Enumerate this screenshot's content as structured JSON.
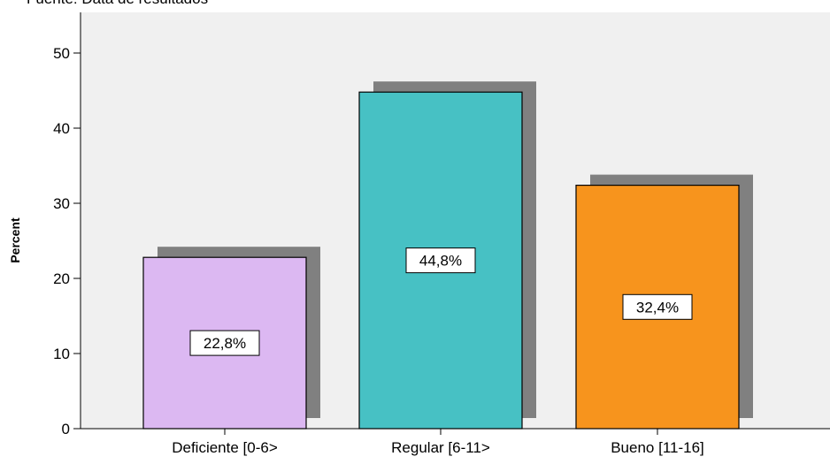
{
  "source_note": "Fuente: Data de resultados",
  "colors": {
    "plot_background": "#f0f0f0",
    "shadow": "#808080",
    "axis": "#000000"
  },
  "chart_data": {
    "type": "bar",
    "categories": [
      "Deficiente [0-6>",
      "Regular [6-11>",
      "Bueno [11-16]"
    ],
    "values": [
      22.8,
      44.8,
      32.4
    ],
    "data_labels": [
      "22,8%",
      "44,8%",
      "32,4%"
    ],
    "colors": [
      "#dcb8f2",
      "#47c1c4",
      "#f7941d"
    ],
    "ylabel": "Percent",
    "xlabel": "",
    "ylim": [
      0,
      50
    ],
    "yticks": [
      0,
      10,
      20,
      30,
      40,
      50
    ],
    "grid": false,
    "legend": "none"
  }
}
